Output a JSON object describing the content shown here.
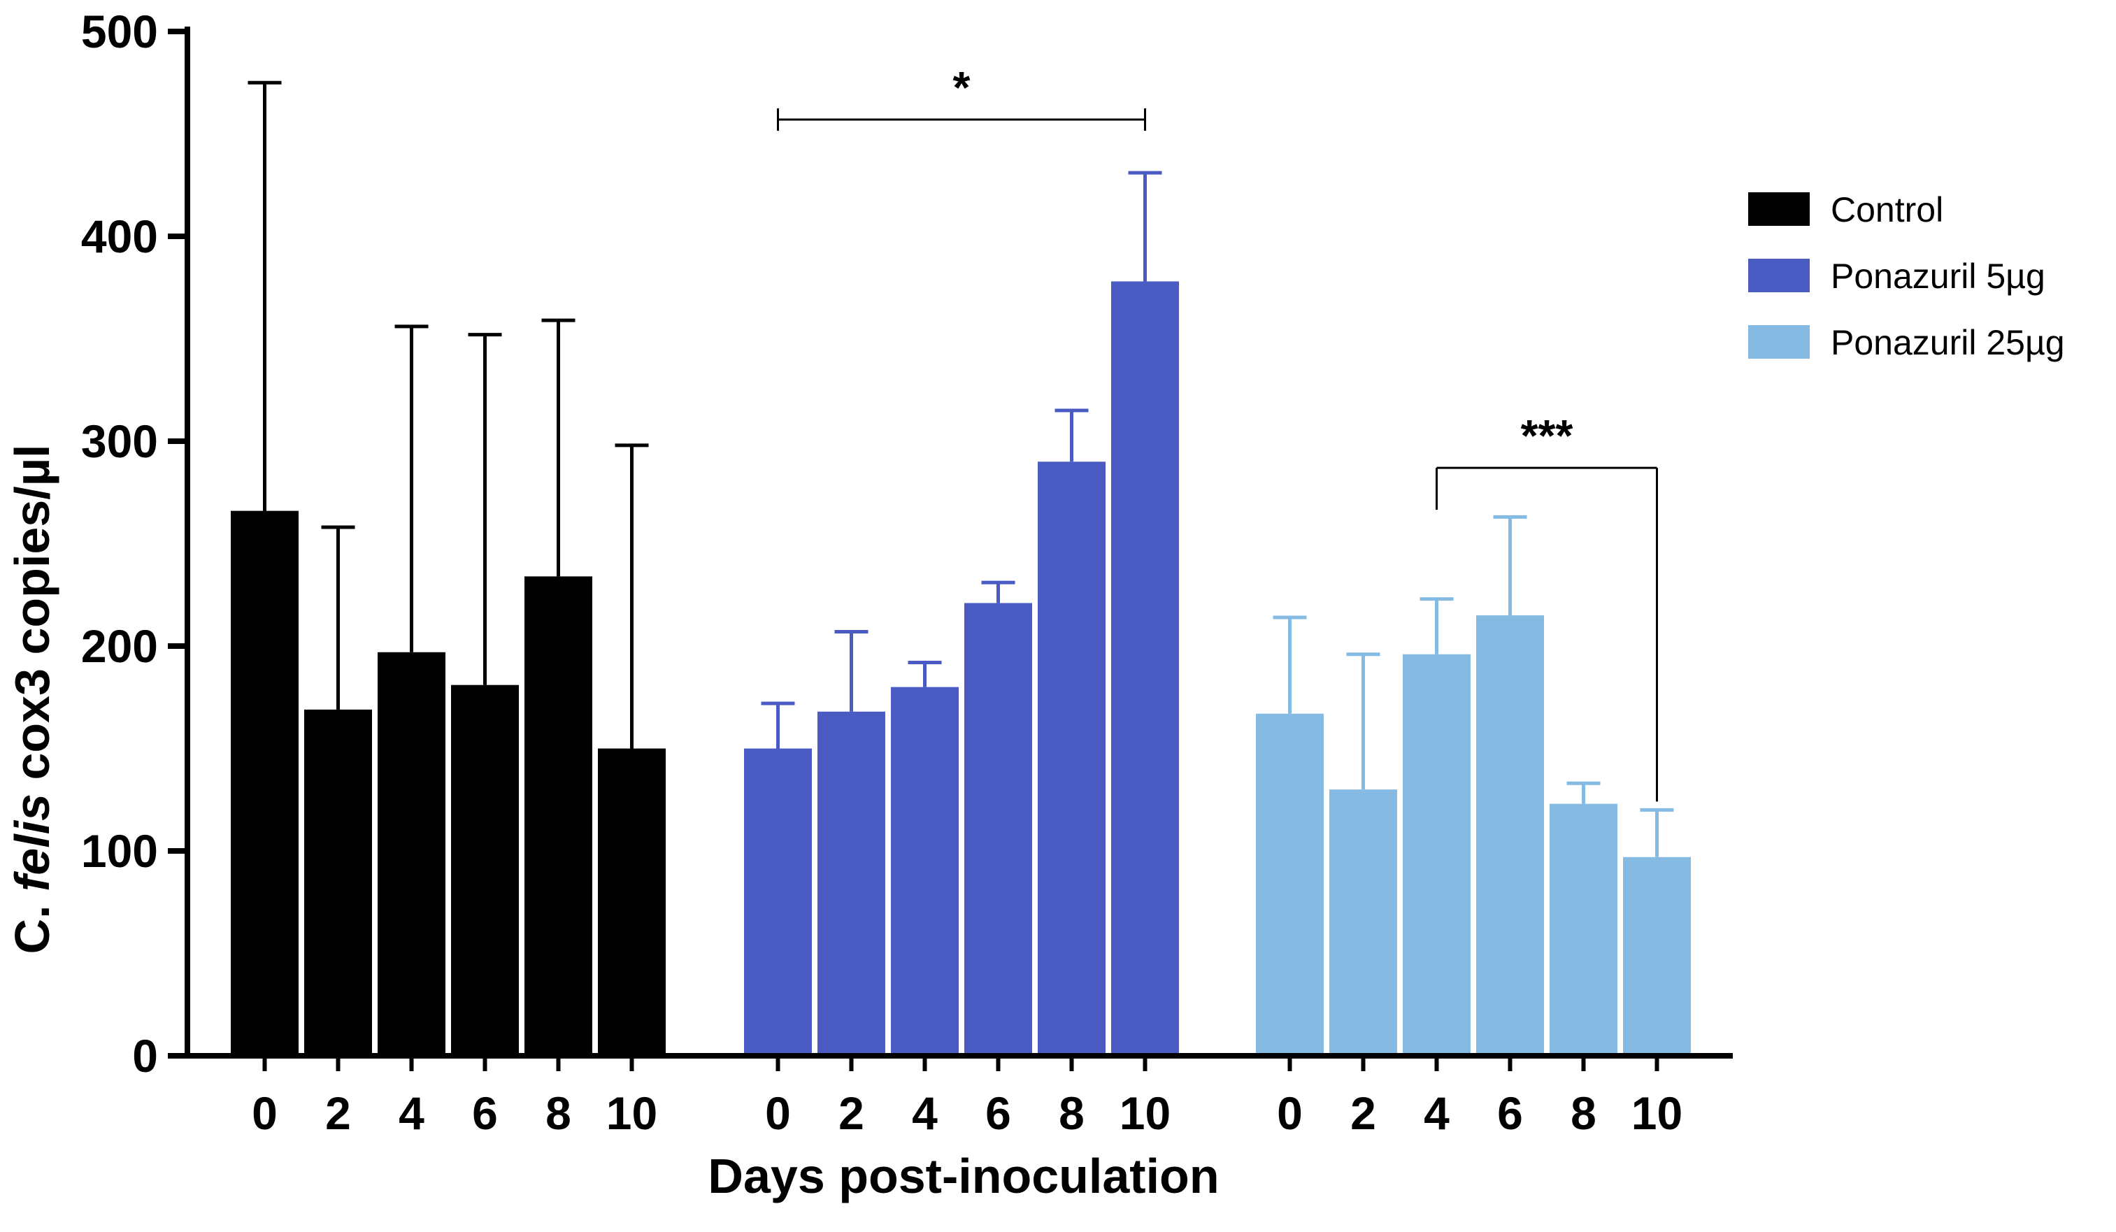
{
  "chart_data": {
    "type": "bar",
    "ylabel_parts": [
      "C. ",
      "felis",
      " cox3 copies/µl"
    ],
    "xlabel": "Days post-inoculation",
    "ylim": [
      0,
      500
    ],
    "yticks": [
      0,
      100,
      200,
      300,
      400,
      500
    ],
    "ytick_labels": [
      "0",
      "100",
      "200",
      "300",
      "400",
      "500"
    ],
    "categories": [
      "0",
      "2",
      "4",
      "6",
      "8",
      "10"
    ],
    "series": [
      {
        "name": "Control",
        "color": "#000000",
        "values": [
          266,
          169,
          197,
          181,
          234,
          150
        ],
        "errors": [
          209,
          89,
          159,
          171,
          125,
          148
        ]
      },
      {
        "name": "Ponazuril 5µg",
        "color": "#4a5bc4",
        "values": [
          150,
          168,
          180,
          221,
          290,
          378
        ],
        "errors": [
          22,
          39,
          12,
          10,
          25,
          53
        ]
      },
      {
        "name": "Ponazuril 25µg",
        "color": "#85bbe3",
        "values": [
          167,
          130,
          196,
          215,
          123,
          97
        ],
        "errors": [
          47,
          66,
          27,
          48,
          10,
          23
        ]
      }
    ],
    "annotations": [
      {
        "text": "*",
        "series": 1,
        "from": 0,
        "to": 5,
        "value": 457,
        "style": "bracket-flat"
      },
      {
        "text": "***",
        "series": 2,
        "from": 2,
        "to": 5,
        "value": 287,
        "style": "bracket-down"
      }
    ],
    "legend_position": "top-right"
  }
}
